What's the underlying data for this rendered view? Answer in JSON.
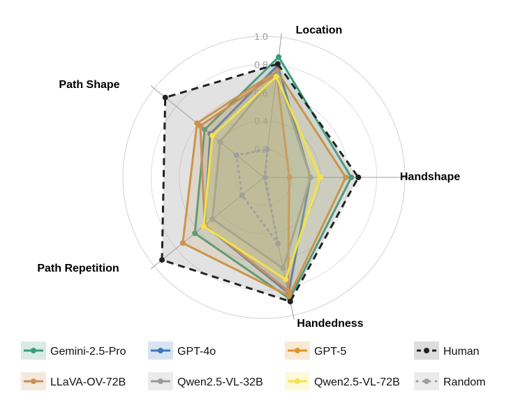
{
  "chart_data": {
    "type": "radar",
    "axes": [
      "Location",
      "Handshape",
      "Handedness",
      "Path Repetition",
      "Path Shape"
    ],
    "rmax": 1.0,
    "ticks": [
      "0.2",
      "0.4",
      "0.6",
      "0.8",
      "1.0"
    ],
    "tick_values": [
      0.2,
      0.4,
      0.6,
      0.8,
      1.0
    ],
    "series": [
      {
        "name": "Gemini-2.5-Pro",
        "color": "#3a9c78",
        "style": "solid",
        "values": [
          0.86,
          0.62,
          0.88,
          0.63,
          0.54
        ]
      },
      {
        "name": "GPT-4o",
        "color": "#3b78b8",
        "style": "solid",
        "values": [
          0.8,
          0.33,
          0.84,
          0.54,
          0.49
        ]
      },
      {
        "name": "GPT-5",
        "color": "#e0942a",
        "style": "solid",
        "values": [
          0.76,
          0.58,
          0.86,
          0.74,
          0.61
        ]
      },
      {
        "name": "Human",
        "color": "#222222",
        "style": "dashed",
        "values": [
          0.81,
          0.67,
          0.9,
          0.93,
          0.9
        ]
      },
      {
        "name": "LLaVA-OV-72B",
        "color": "#c98f5a",
        "style": "solid",
        "values": [
          0.74,
          0.18,
          0.82,
          0.54,
          0.58
        ]
      },
      {
        "name": "Qwen2.5-VL-32B",
        "color": "#9a9a9a",
        "style": "solid",
        "values": [
          0.74,
          0.33,
          0.66,
          0.47,
          0.4
        ]
      },
      {
        "name": "Qwen2.5-VL-72B",
        "color": "#f3e24a",
        "style": "solid",
        "values": [
          0.72,
          0.4,
          0.74,
          0.55,
          0.47
        ]
      },
      {
        "name": "Random",
        "color": "#a0a0a0",
        "style": "dotted",
        "values": [
          0.2,
          0.01,
          0.48,
          0.2,
          0.25
        ]
      }
    ],
    "legend": [
      [
        "Gemini-2.5-Pro",
        "GPT-4o",
        "GPT-5",
        "Human"
      ],
      [
        "LLaVA-OV-72B",
        "Qwen2.5-VL-32B",
        "Qwen2.5-VL-72B",
        "Random"
      ]
    ]
  }
}
